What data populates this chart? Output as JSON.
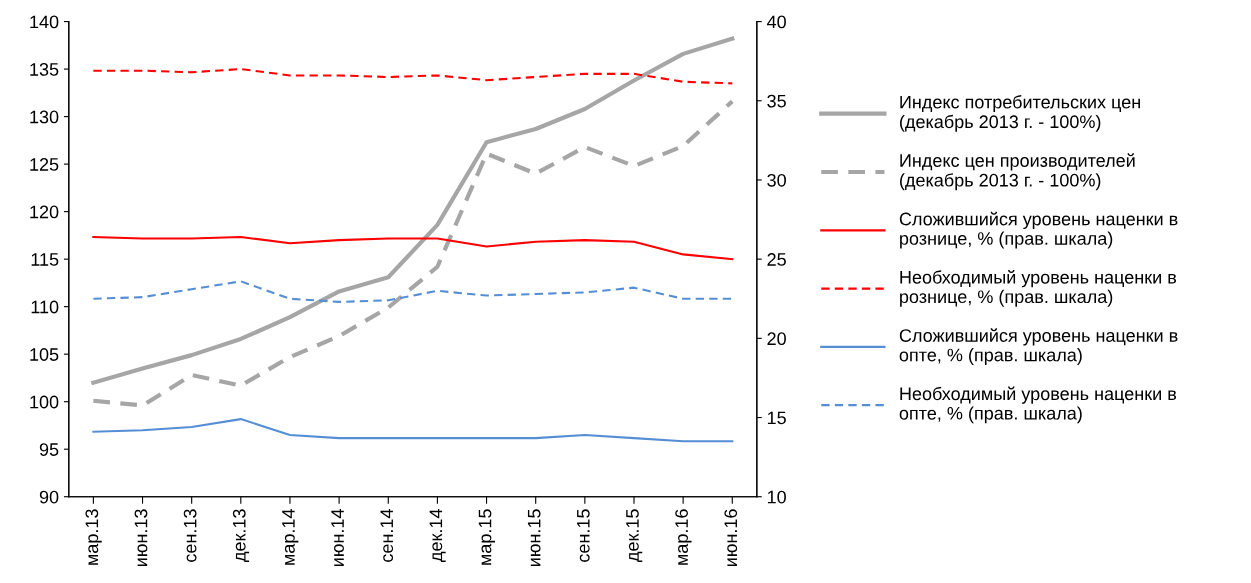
{
  "chart_data": {
    "type": "line",
    "categories": [
      "мар.13",
      "июн.13",
      "сен.13",
      "дек.13",
      "мар.14",
      "июн.14",
      "сен.14",
      "дек.14",
      "мар.15",
      "июн.15",
      "сен.15",
      "дек.15",
      "мар.16",
      "июн.16"
    ],
    "ylim": [
      90,
      140
    ],
    "yticks": [
      90,
      95,
      100,
      105,
      110,
      115,
      120,
      125,
      130,
      135,
      140
    ],
    "y2lim": [
      10,
      40
    ],
    "y2ticks": [
      10,
      15,
      20,
      25,
      30,
      35,
      40
    ],
    "grid": false,
    "legend": "right",
    "marker": "none",
    "series": [
      {
        "name": "Индекс потребительских цен\n(декабрь 2013 г. - 100%)",
        "color": "#a6a6a6",
        "line_style": "solid",
        "values": [
          102.0,
          103.5,
          104.9,
          106.6,
          108.9,
          111.6,
          113.1,
          118.6,
          127.3,
          128.7,
          130.8,
          133.8,
          136.6,
          138.2
        ]
      },
      {
        "name": "Индекс цен производителей\n(декабрь 2013 г. - 100%)",
        "color": "#a6a6a6",
        "line_style": "dashed",
        "values": [
          100.1,
          99.6,
          102.8,
          101.7,
          104.7,
          106.9,
          109.9,
          114.2,
          126.1,
          124.0,
          126.8,
          124.8,
          126.9,
          131.6
        ]
      },
      {
        "name": "Сложившийся уровень наценки в\nрознице, % (прав. шкала)",
        "color": "#ff0000",
        "line_style": "solid",
        "axis": "y2",
        "values": [
          26.4,
          26.3,
          26.3,
          26.4,
          26.0,
          26.2,
          26.3,
          26.3,
          25.8,
          26.1,
          26.2,
          26.1,
          25.3,
          25.0
        ]
      },
      {
        "name": "Необходимый уровень наценки в\nрознице, % (прав. шкала)",
        "color": "#ff0000",
        "line_style": "dashed",
        "axis": "y2",
        "values": [
          36.9,
          36.9,
          36.8,
          37.0,
          36.6,
          36.6,
          36.5,
          36.6,
          36.3,
          36.5,
          36.7,
          36.7,
          36.2,
          36.1
        ]
      },
      {
        "name": "Сложившийся уровень наценки в\nопте, % (прав. шкала)",
        "color": "#558ed5",
        "line_style": "solid",
        "axis": "y2",
        "values": [
          14.1,
          14.2,
          14.4,
          14.9,
          13.9,
          13.7,
          13.7,
          13.7,
          13.7,
          13.7,
          13.9,
          13.7,
          13.5,
          13.5
        ]
      },
      {
        "name": "Необходимый уровень наценки в\nопте, % (прав. шкала)",
        "color": "#558ed5",
        "line_style": "dashed",
        "axis": "y2",
        "values": [
          22.5,
          22.6,
          23.1,
          23.6,
          22.5,
          22.3,
          22.4,
          23.0,
          22.7,
          22.8,
          22.9,
          23.2,
          22.5,
          22.5
        ]
      }
    ]
  }
}
